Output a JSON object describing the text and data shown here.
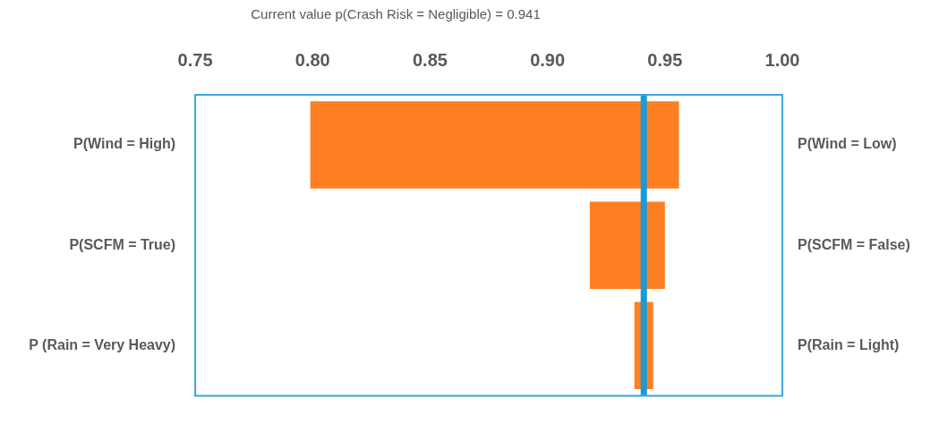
{
  "chart_data": {
    "type": "bar",
    "orientation": "horizontal",
    "title": "Current value p(Crash Risk = Negligible) = 0.941",
    "categories": [
      "P(Wind = High)",
      "P(SCFM = True)",
      "P (Rain = Very Heavy)"
    ],
    "base": [
      0.799,
      0.918,
      0.937
    ],
    "values": [
      0.157,
      0.032,
      0.008
    ],
    "color": "#fe7f22",
    "xlim": [
      0.75,
      1.0
    ],
    "xticks": [
      {
        "value": 0.75,
        "label": "0.75"
      },
      {
        "value": 0.8,
        "label": "0.80"
      },
      {
        "value": 0.85,
        "label": "0.85"
      },
      {
        "value": 0.9,
        "label": "0.90"
      },
      {
        "value": 0.95,
        "label": "0.95"
      },
      {
        "value": 1.0,
        "label": "1.00"
      }
    ],
    "ref_lines": [
      {
        "axis": "x",
        "value": 0.941,
        "color": "#1b9ad6"
      }
    ],
    "annotations": [
      "P(Wind = Low)",
      "P(SCFM = False)",
      "P(Rain = Light)"
    ],
    "grid": false,
    "legend": false
  }
}
